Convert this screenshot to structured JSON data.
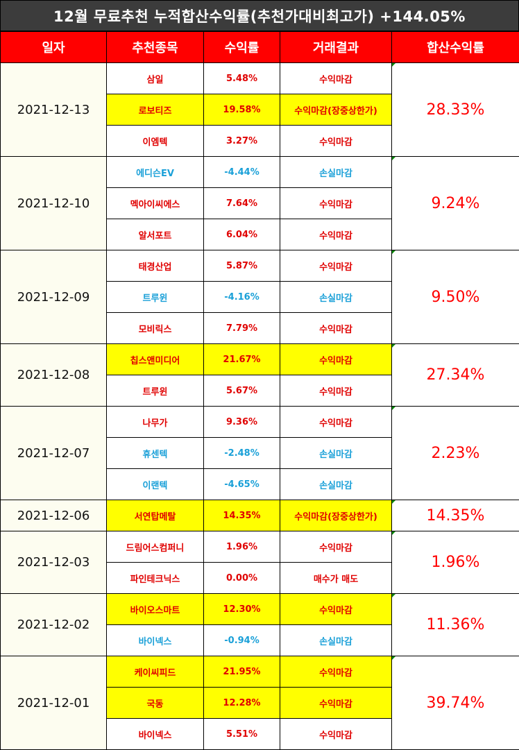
{
  "title": "12월 무료추천 누적합산수익률(추천가대비최고가) +144.05%",
  "headers": [
    "일자",
    "추천종목",
    "수익률",
    "거래결과",
    "합산수익률"
  ],
  "groups": [
    {
      "date": "2021-12-13",
      "total": "28.33%",
      "rows": [
        {
          "name": "삼일",
          "ret": "5.48%",
          "result": "수익마감",
          "tone": "gain",
          "highlight": false
        },
        {
          "name": "로보티즈",
          "ret": "19.58%",
          "result": "수익마감(장중상한가)",
          "tone": "gain",
          "highlight": true
        },
        {
          "name": "이엠텍",
          "ret": "3.27%",
          "result": "수익마감",
          "tone": "gain",
          "highlight": false
        }
      ]
    },
    {
      "date": "2021-12-10",
      "total": "9.24%",
      "rows": [
        {
          "name": "에디슨EV",
          "ret": "-4.44%",
          "result": "손실마감",
          "tone": "loss",
          "highlight": false
        },
        {
          "name": "멕아이씨에스",
          "ret": "7.64%",
          "result": "수익마감",
          "tone": "gain",
          "highlight": false
        },
        {
          "name": "알서포트",
          "ret": "6.04%",
          "result": "수익마감",
          "tone": "gain",
          "highlight": false
        }
      ]
    },
    {
      "date": "2021-12-09",
      "total": "9.50%",
      "rows": [
        {
          "name": "태경산업",
          "ret": "5.87%",
          "result": "수익마감",
          "tone": "gain",
          "highlight": false
        },
        {
          "name": "트루윈",
          "ret": "-4.16%",
          "result": "손실마감",
          "tone": "loss",
          "highlight": false
        },
        {
          "name": "모비릭스",
          "ret": "7.79%",
          "result": "수익마감",
          "tone": "gain",
          "highlight": false
        }
      ]
    },
    {
      "date": "2021-12-08",
      "total": "27.34%",
      "rows": [
        {
          "name": "칩스앤미디어",
          "ret": "21.67%",
          "result": "수익마감",
          "tone": "gain",
          "highlight": true
        },
        {
          "name": "트루윈",
          "ret": "5.67%",
          "result": "수익마감",
          "tone": "gain",
          "highlight": false
        }
      ]
    },
    {
      "date": "2021-12-07",
      "total": "2.23%",
      "rows": [
        {
          "name": "나무가",
          "ret": "9.36%",
          "result": "수익마감",
          "tone": "gain",
          "highlight": false
        },
        {
          "name": "휴센텍",
          "ret": "-2.48%",
          "result": "손실마감",
          "tone": "loss",
          "highlight": false
        },
        {
          "name": "이랜텍",
          "ret": "-4.65%",
          "result": "손실마감",
          "tone": "loss",
          "highlight": false
        }
      ]
    },
    {
      "date": "2021-12-06",
      "total": "14.35%",
      "rows": [
        {
          "name": "서연탑메탈",
          "ret": "14.35%",
          "result": "수익마감(장중상한가)",
          "tone": "gain",
          "highlight": true
        }
      ]
    },
    {
      "date": "2021-12-03",
      "total": "1.96%",
      "rows": [
        {
          "name": "드림어스컴퍼니",
          "ret": "1.96%",
          "result": "수익마감",
          "tone": "gain",
          "highlight": false
        },
        {
          "name": "파인테크닉스",
          "ret": "0.00%",
          "result": "매수가 매도",
          "tone": "neutral",
          "highlight": false
        }
      ]
    },
    {
      "date": "2021-12-02",
      "total": "11.36%",
      "rows": [
        {
          "name": "바이오스마트",
          "ret": "12.30%",
          "result": "수익마감",
          "tone": "gain",
          "highlight": true
        },
        {
          "name": "바이넥스",
          "ret": "-0.94%",
          "result": "손실마감",
          "tone": "loss",
          "highlight": false
        }
      ]
    },
    {
      "date": "2021-12-01",
      "total": "39.74%",
      "rows": [
        {
          "name": "케이씨피드",
          "ret": "21.95%",
          "result": "수익마감",
          "tone": "gain",
          "highlight": true
        },
        {
          "name": "국동",
          "ret": "12.28%",
          "result": "수익마감",
          "tone": "gain",
          "highlight": true
        },
        {
          "name": "바이넥스",
          "ret": "5.51%",
          "result": "수익마감",
          "tone": "gain",
          "highlight": false
        }
      ]
    }
  ]
}
